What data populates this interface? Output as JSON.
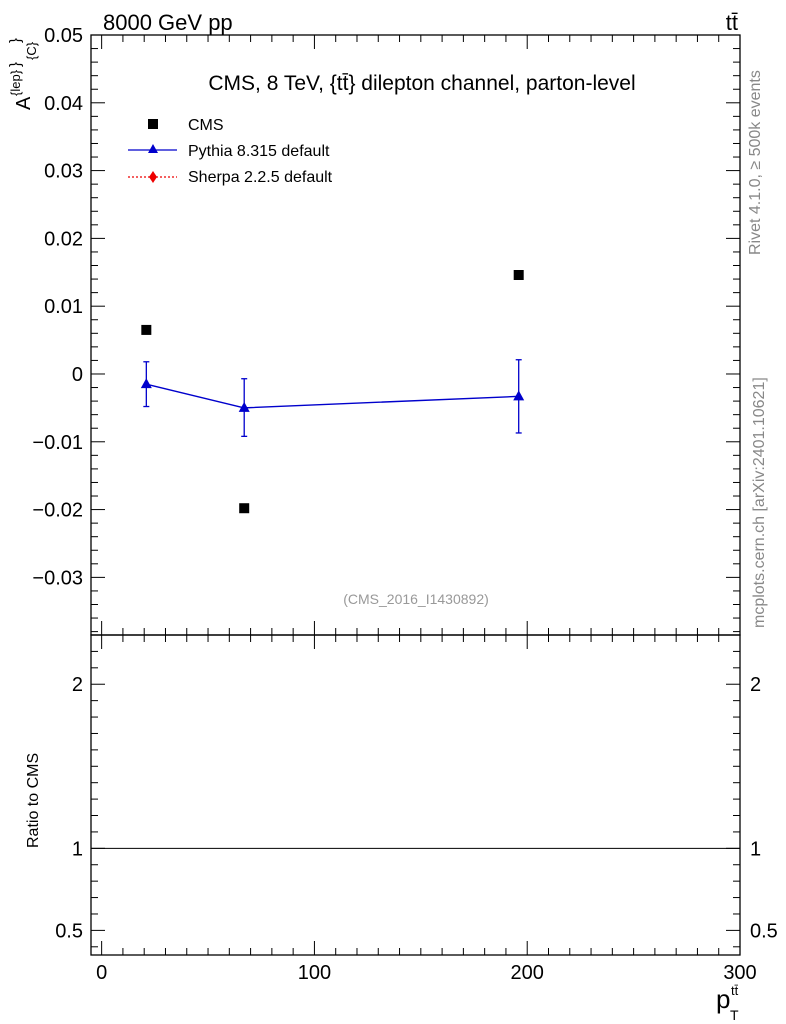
{
  "header": {
    "left_label": "8000 GeV pp",
    "right_label": "tt̄"
  },
  "side_labels": {
    "rivet": "Rivet 4.1.0, ≥ 500k events",
    "mcplots": "mcplots.cern.ch [arXiv:2401.10621]"
  },
  "colors": {
    "cms": "#000000",
    "pythia": "#0000cc",
    "sherpa": "#ee0000"
  },
  "chart_data": [
    {
      "type": "scatter",
      "title": "CMS, 8 TeV, {tt̄} dilepton channel, parton-level",
      "watermark": "(CMS_2016_I1430892)",
      "ylabel_parts": [
        "A",
        "{lep}",
        "}",
        "{C}",
        "}"
      ],
      "xlim": [
        -5,
        300
      ],
      "ylim": [
        -0.0385,
        0.05
      ],
      "yticks": [
        0.05,
        0.04,
        0.03,
        0.02,
        0.01,
        0,
        -0.01,
        -0.02,
        -0.03
      ],
      "ytick_labels": [
        "0.05",
        "0.04",
        "0.03",
        "0.02",
        "0.01",
        "0",
        "−0.01",
        "−0.02",
        "−0.03"
      ],
      "legend_position": "top-left",
      "series": [
        {
          "name": "CMS",
          "marker": "square",
          "x": [
            21,
            67,
            196
          ],
          "y": [
            0.0065,
            -0.0198,
            0.0146
          ]
        },
        {
          "name": "Pythia 8.315 default",
          "marker": "triangle",
          "line": "solid",
          "x": [
            21,
            67,
            196
          ],
          "y": [
            -0.0015,
            -0.005,
            -0.0033
          ],
          "err_low": [
            0.0033,
            0.0042,
            0.0054
          ],
          "err_high": [
            0.0033,
            0.0043,
            0.0054
          ]
        },
        {
          "name": "Sherpa 2.2.5 default",
          "marker": "diamond",
          "line": "dotted",
          "x": [],
          "y": []
        }
      ]
    },
    {
      "type": "line",
      "ylabel": "Ratio to CMS",
      "xlabel_parts": [
        "p",
        "tt̄",
        "T"
      ],
      "xlim": [
        -5,
        300
      ],
      "ylim": [
        0.35,
        2.3
      ],
      "xticks": [
        0,
        100,
        200,
        300
      ],
      "xtick_labels": [
        "0",
        "100",
        "200",
        "300"
      ],
      "yticks": [
        0.5,
        1,
        2
      ],
      "ytick_labels": [
        "0.5",
        "1",
        "2"
      ],
      "reference_line": 1
    }
  ]
}
